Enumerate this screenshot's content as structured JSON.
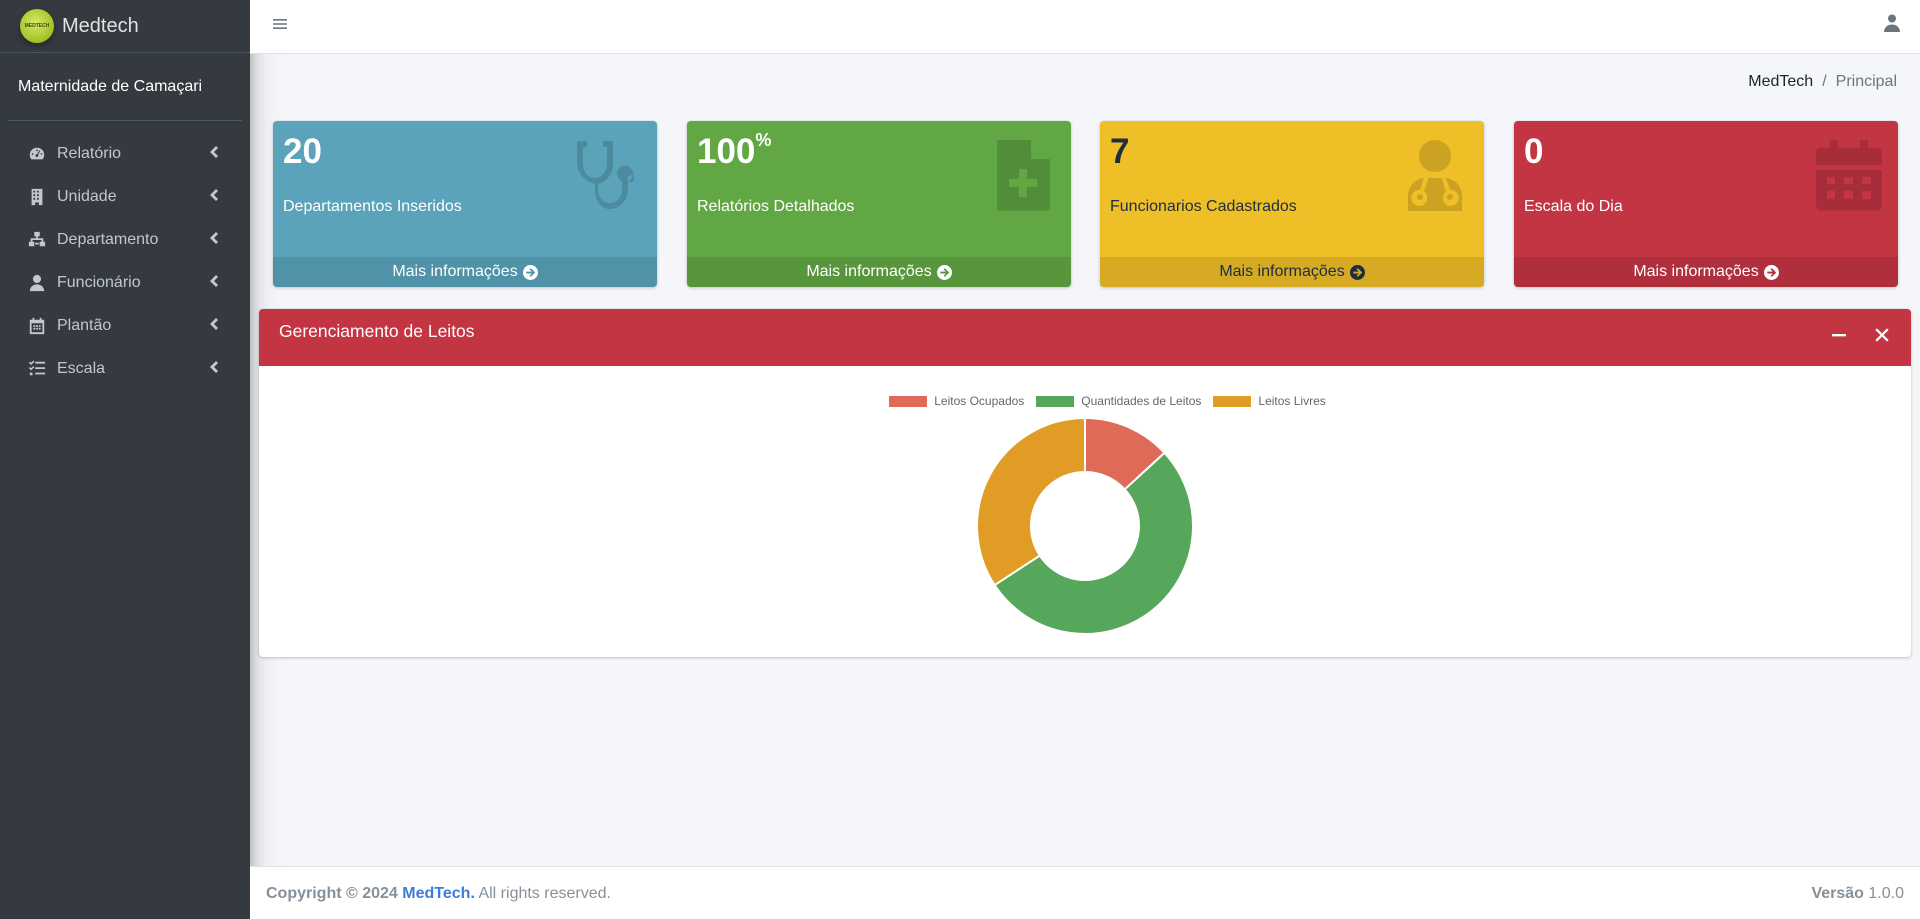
{
  "sidebar": {
    "brand": "Medtech",
    "logo_text": "MEDTECH",
    "user": "Maternidade de Camaçari",
    "items": [
      {
        "label": "Relatório",
        "icon": "tachometer-icon"
      },
      {
        "label": "Unidade",
        "icon": "building-icon"
      },
      {
        "label": "Departamento",
        "icon": "sitemap-icon"
      },
      {
        "label": "Funcionário",
        "icon": "user-icon"
      },
      {
        "label": "Plantão",
        "icon": "calendar-icon"
      },
      {
        "label": "Escala",
        "icon": "list-check-icon"
      }
    ]
  },
  "breadcrumb": {
    "home": "MedTech",
    "separator": "/",
    "current": "Principal"
  },
  "boxes": [
    {
      "value": "20",
      "suffix": "",
      "label": "Departamentos Inseridos",
      "footer": "Mais informações",
      "icon": "stethoscope-icon",
      "color": "#5aa3ba"
    },
    {
      "value": "100",
      "suffix": "%",
      "label": "Relatórios Detalhados",
      "footer": "Mais informações",
      "icon": "file-medical-icon",
      "color": "#61a744"
    },
    {
      "value": "7",
      "suffix": "",
      "label": "Funcionarios Cadastrados",
      "footer": "Mais informações",
      "icon": "user-doctor-icon",
      "color": "#efbf27"
    },
    {
      "value": "0",
      "suffix": "",
      "label": "Escala do Dia",
      "footer": "Mais informações",
      "icon": "calendar-icon",
      "color": "#c33543"
    }
  ],
  "card": {
    "title": "Gerenciamento de Leitos"
  },
  "chart_data": {
    "type": "doughnut",
    "categories": [
      "Leitos Ocupados",
      "Quantidades de Leitos",
      "Leitos Livres"
    ],
    "values": [
      5,
      20,
      13
    ],
    "colors": [
      "#df6a57",
      "#56a65b",
      "#e19c25"
    ],
    "legend": "top"
  },
  "footer": {
    "copyright": "Copyright © 2024",
    "brand_link": "MedTech.",
    "rights": "All rights reserved.",
    "version_label": "Versão",
    "version": "1.0.0"
  }
}
